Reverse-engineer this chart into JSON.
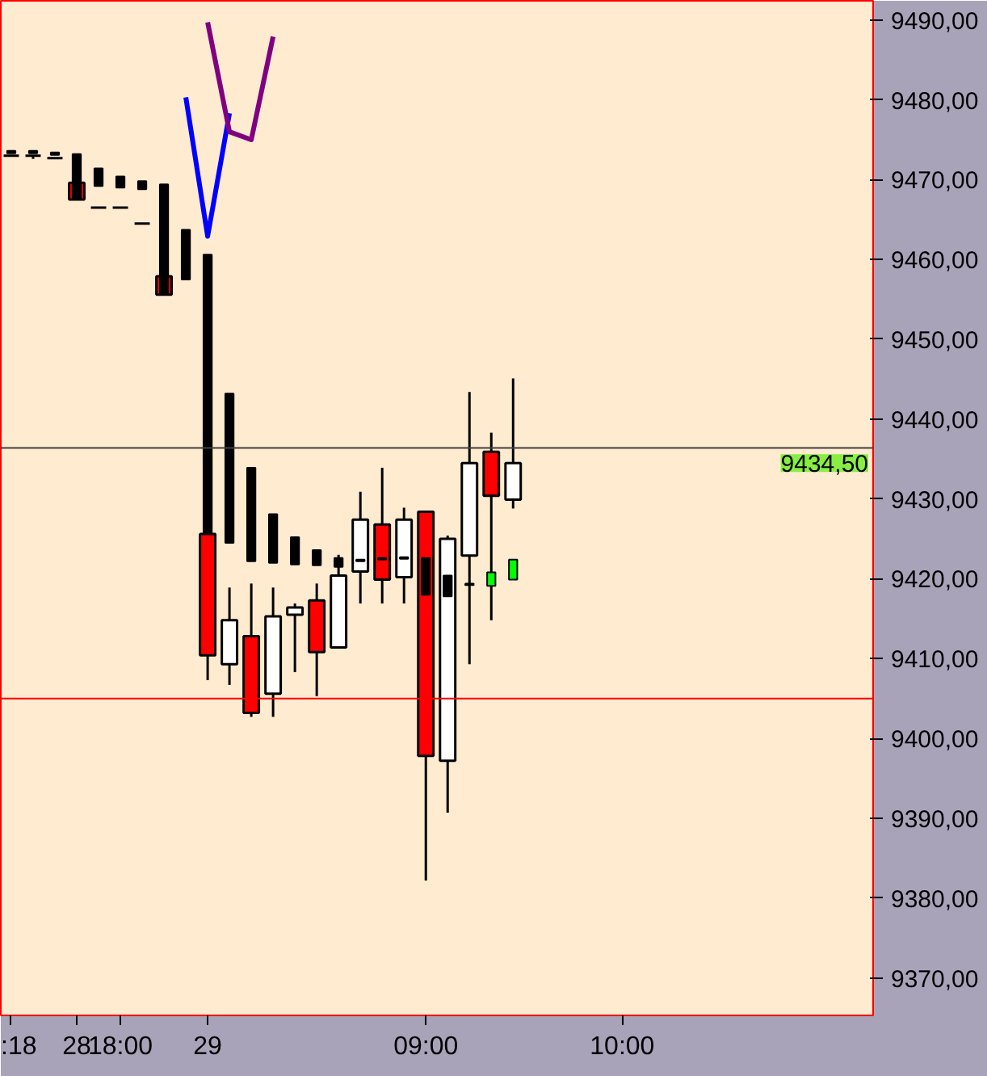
{
  "chart_data": {
    "type": "candlestick",
    "categories": [
      ":18",
      null,
      null,
      "28",
      null,
      "18:00",
      null,
      null,
      null,
      "29",
      null,
      null,
      null,
      null,
      null,
      null,
      null,
      null,
      null,
      "09:00",
      null,
      null,
      null,
      null,
      null,
      null,
      null,
      null,
      "10:00",
      null,
      null,
      null,
      null,
      null,
      null,
      null,
      null,
      null,
      null,
      null
    ],
    "series": [
      {
        "type": "bar",
        "color": "#000000",
        "base": [
          9473.3,
          9473.3,
          9473.1,
          9467.5,
          9469.2,
          9469.0,
          9468.8,
          9455.6,
          9457.5,
          9425.6,
          9424.5,
          9422.2,
          9422.0,
          9421.8,
          9421.7,
          9421.5,
          9422.2,
          null,
          9422.5,
          9418.0,
          9417.8,
          9419.2,
          null,
          null,
          null,
          null,
          null,
          null,
          null,
          null,
          null,
          null,
          null,
          null,
          null,
          null,
          null,
          null,
          null,
          null
        ],
        "values": [
          0.3,
          0.3,
          0.3,
          5.7,
          2.2,
          1.4,
          1.0,
          13.8,
          6.2,
          35.0,
          18.7,
          11.7,
          6.1,
          3.4,
          1.9,
          1.1,
          0.2,
          null,
          0.2,
          4.6,
          2.6,
          0.2,
          null,
          null,
          null,
          null,
          null,
          null,
          null,
          null,
          null,
          null,
          null,
          null,
          null,
          null,
          null,
          null,
          null,
          null
        ]
      },
      {
        "type": "bar",
        "color": "#00ff00",
        "base": [
          null,
          null,
          null,
          null,
          null,
          null,
          null,
          null,
          null,
          null,
          null,
          null,
          null,
          null,
          null,
          null,
          null,
          9422.4,
          null,
          null,
          null,
          null,
          9419.1,
          9419.9,
          null,
          null,
          null,
          null,
          null,
          null,
          null,
          null,
          null,
          null,
          null,
          null,
          null,
          null,
          null,
          null
        ],
        "values": [
          null,
          null,
          null,
          null,
          null,
          null,
          null,
          null,
          null,
          null,
          null,
          null,
          null,
          null,
          null,
          null,
          null,
          0.2,
          null,
          null,
          null,
          null,
          1.7,
          2.5,
          null,
          null,
          null,
          null,
          null,
          null,
          null,
          null,
          null,
          null,
          null,
          null,
          null,
          null,
          null,
          null
        ]
      },
      {
        "type": "line",
        "color": "#0000ff",
        "values": [
          null,
          null,
          null,
          null,
          null,
          null,
          null,
          null,
          9480.3,
          9462.9,
          9478.3,
          null,
          null,
          null,
          null,
          null,
          null,
          null,
          null,
          null,
          null,
          null,
          null,
          null,
          null,
          null,
          null,
          null,
          null,
          null,
          null,
          null,
          null,
          null,
          null,
          null,
          null,
          null,
          null,
          null
        ]
      },
      {
        "type": "line",
        "color": "#800080",
        "values": [
          null,
          null,
          null,
          null,
          null,
          null,
          null,
          null,
          null,
          9489.7,
          9476.0,
          9475.0,
          9487.9,
          null,
          null,
          null,
          null,
          null,
          null,
          null,
          null,
          null,
          null,
          null,
          null,
          null,
          null,
          null,
          null,
          null,
          null,
          null,
          null,
          null,
          null,
          null,
          null,
          null,
          null,
          null
        ]
      },
      {
        "ohlc": [
          [
            9473.0,
            9473.0,
            9473.0,
            9473.0
          ],
          [
            9473.0,
            9473.0,
            9472.6,
            9473.0
          ],
          [
            9472.7,
            9472.7,
            9472.7,
            9472.7
          ],
          [
            9469.6,
            9469.6,
            9467.5,
            9467.5
          ],
          [
            9466.5,
            9466.5,
            9466.5,
            9466.5
          ],
          [
            9466.5,
            9466.5,
            9466.5,
            9466.5
          ],
          [
            9464.5,
            9464.5,
            9464.5,
            9464.5
          ],
          [
            9457.9,
            9457.9,
            9455.6,
            9455.6
          ],
          null,
          [
            9425.6,
            9425.6,
            9407.3,
            9410.4
          ],
          [
            9409.3,
            9418.9,
            9406.7,
            9414.8
          ],
          [
            9412.8,
            9419.4,
            9402.7,
            9403.2
          ],
          [
            9405.6,
            9418.9,
            9402.7,
            9415.3
          ],
          [
            9415.5,
            9416.9,
            9408.3,
            9416.4
          ],
          [
            9417.3,
            9419.4,
            9405.3,
            9410.8
          ],
          [
            9411.4,
            9423.0,
            9411.4,
            9420.4
          ],
          [
            9420.9,
            9430.9,
            9416.9,
            9427.4
          ],
          [
            9426.8,
            9433.9,
            9416.9,
            9419.9
          ],
          [
            9420.2,
            9428.9,
            9416.9,
            9427.4
          ],
          [
            9428.4,
            9428.4,
            9382.2,
            9397.8
          ],
          [
            9397.2,
            9425.4,
            9390.7,
            9425.0
          ],
          [
            9422.9,
            9443.4,
            9409.3,
            9434.5
          ],
          [
            9435.9,
            9438.3,
            9414.8,
            9430.4
          ],
          [
            9429.9,
            9445.1,
            9428.8,
            9434.5
          ],
          null,
          null,
          null,
          null,
          null,
          null,
          null,
          null,
          null,
          null,
          null,
          null,
          null,
          null,
          null,
          null
        ],
        "colors": [
          "#000000",
          "#000000",
          "#000000",
          "#ff0000",
          "#000000",
          "#000000",
          "#000000",
          "#ff0000",
          null,
          "#ff0000",
          "#ffffff",
          "#ff0000",
          "#ffffff",
          "#ffffff",
          "#ff0000",
          "#ffffff",
          "#ffffff",
          "#ff0000",
          "#ffffff",
          "#ff0000",
          "#ffffff",
          "#ffffff",
          "#ff0000",
          "#ffffff",
          null,
          null,
          null,
          null,
          null,
          null,
          null,
          null,
          null,
          null,
          null,
          null,
          null,
          null,
          null,
          null
        ]
      }
    ],
    "ylim": [
      9365.3,
      9492.4
    ],
    "yticks": [
      {
        "value": 9370,
        "label": "9370,00"
      },
      {
        "value": 9380,
        "label": "9380,00"
      },
      {
        "value": 9390,
        "label": "9390,00"
      },
      {
        "value": 9400,
        "label": "9400,00"
      },
      {
        "value": 9410,
        "label": "9410,00"
      },
      {
        "value": 9420,
        "label": "9420,00"
      },
      {
        "value": 9430,
        "label": "9430,00"
      },
      {
        "value": 9440,
        "label": "9440,00"
      },
      {
        "value": 9450,
        "label": "9450,00"
      },
      {
        "value": 9460,
        "label": "9460,00"
      },
      {
        "value": 9470,
        "label": "9470,00"
      },
      {
        "value": 9480,
        "label": "9480,00"
      },
      {
        "value": 9490,
        "label": "9490,00"
      }
    ],
    "ref_lines": [
      {
        "axis": "y",
        "value": 9405.0,
        "color": "#ff0000"
      },
      {
        "axis": "y",
        "value": 9436.4,
        "color": "#404040"
      }
    ],
    "annotations": [
      "9434,50"
    ],
    "grid": false
  }
}
